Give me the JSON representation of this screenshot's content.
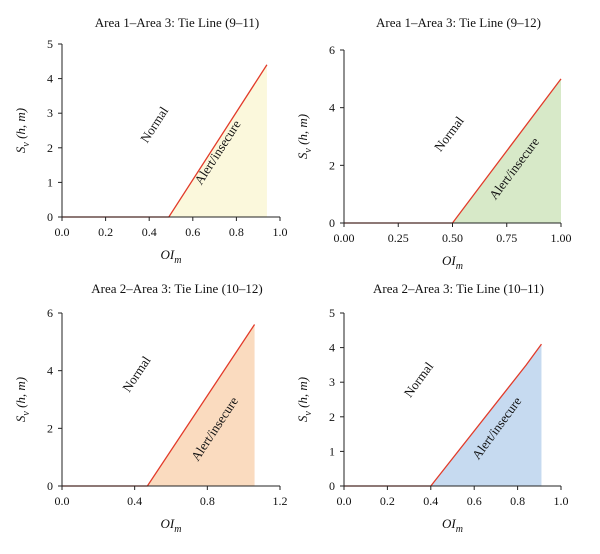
{
  "chart_data": [
    {
      "type": "area",
      "title": "Area 1–Area 3: Tie Line (9–11)",
      "xlabel": "OI",
      "xlabel_sub": "m",
      "ylabel": "S",
      "ylabel_sub": "v",
      "ylabel_suffix": " (h, m)",
      "xlim": [
        0,
        1.0
      ],
      "ylim": [
        0,
        5
      ],
      "xticks": [
        0.0,
        0.2,
        0.4,
        0.6,
        0.8,
        1.0
      ],
      "xtick_labels": [
        "0.0",
        "0.2",
        "0.4",
        "0.6",
        "0.8",
        "1.0"
      ],
      "yticks": [
        0,
        1,
        2,
        3,
        4,
        5
      ],
      "ytick_labels": [
        "0",
        "1",
        "2",
        "3",
        "4",
        "5"
      ],
      "boundary": {
        "x": [
          0.0,
          0.49,
          0.94
        ],
        "y": [
          0,
          0,
          4.4
        ]
      },
      "fill_color": "#fbf8dc",
      "line_color": "#e23b2a",
      "regions": [
        "Normal",
        "Alert/insecure"
      ],
      "normal_at": [
        0.44,
        2.6
      ],
      "alert_at": [
        0.73,
        1.8
      ]
    },
    {
      "type": "area",
      "title": "Area 1–Area 3: Tie Line (9–12)",
      "xlabel": "OI",
      "xlabel_sub": "m",
      "ylabel": "S",
      "ylabel_sub": "v",
      "ylabel_suffix": " (h, m)",
      "xlim": [
        0,
        1.0
      ],
      "ylim": [
        0,
        6
      ],
      "xticks": [
        0.0,
        0.25,
        0.5,
        0.75,
        1.0
      ],
      "xtick_labels": [
        "0.00",
        "0.25",
        "0.50",
        "0.75",
        "1.00"
      ],
      "yticks": [
        0,
        2,
        4,
        6
      ],
      "ytick_labels": [
        "0",
        "2",
        "4",
        "6"
      ],
      "boundary": {
        "x": [
          0.0,
          0.5,
          1.0
        ],
        "y": [
          0,
          0,
          5.0
        ]
      },
      "fill_color": "#d7e9c8",
      "line_color": "#e23b2a",
      "regions": [
        "Normal",
        "Alert/insecure"
      ],
      "normal_at": [
        0.5,
        3.0
      ],
      "alert_at": [
        0.8,
        1.8
      ]
    },
    {
      "type": "area",
      "title": "Area 2–Area 3: Tie Line (10–12)",
      "xlabel": "OI",
      "xlabel_sub": "m",
      "ylabel": "S",
      "ylabel_sub": "v",
      "ylabel_suffix": " (h, m)",
      "xlim": [
        0,
        1.2
      ],
      "ylim": [
        0,
        6
      ],
      "xticks": [
        0.0,
        0.4,
        0.8,
        1.2
      ],
      "xtick_labels": [
        "0.0",
        "0.4",
        "0.8",
        "1.2"
      ],
      "yticks": [
        0,
        2,
        4,
        6
      ],
      "ytick_labels": [
        "0",
        "2",
        "4",
        "6"
      ],
      "boundary": {
        "x": [
          0.0,
          0.47,
          1.06
        ],
        "y": [
          0,
          0,
          5.6
        ]
      },
      "fill_color": "#fadbbf",
      "line_color": "#e23b2a",
      "regions": [
        "Normal",
        "Alert/insecure"
      ],
      "normal_at": [
        0.43,
        3.8
      ],
      "alert_at": [
        0.86,
        1.9
      ]
    },
    {
      "type": "area",
      "title": "Area 2–Area 3: Tie Line (10–11)",
      "xlabel": "OI",
      "xlabel_sub": "m",
      "ylabel": "S",
      "ylabel_sub": "v",
      "ylabel_suffix": " (h, m)",
      "xlim": [
        0,
        1.0
      ],
      "ylim": [
        0,
        5
      ],
      "xticks": [
        0.0,
        0.2,
        0.4,
        0.6,
        0.8,
        1.0
      ],
      "xtick_labels": [
        "0.0",
        "0.2",
        "0.4",
        "0.6",
        "0.8",
        "1.0"
      ],
      "yticks": [
        0,
        1,
        2,
        3,
        4,
        5
      ],
      "ytick_labels": [
        "0",
        "1",
        "2",
        "3",
        "4",
        "5"
      ],
      "boundary": {
        "x": [
          0.0,
          0.4,
          0.84,
          0.91
        ],
        "y": [
          0,
          0,
          3.5,
          4.1
        ]
      },
      "fill_color": "#c6daf0",
      "line_color": "#e23b2a",
      "regions": [
        "Normal",
        "Alert/insecure"
      ],
      "normal_at": [
        0.36,
        3.0
      ],
      "alert_at": [
        0.72,
        1.6
      ]
    }
  ]
}
